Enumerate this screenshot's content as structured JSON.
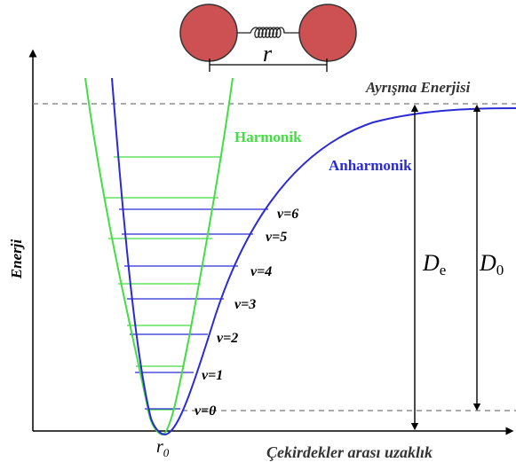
{
  "diagram": {
    "separation_label": "r",
    "dissociation_label": "Ayrışma Enerjisi",
    "harmonic_label": "Harmonik",
    "anharmonic_label": "Anharmonik",
    "energy_axis_label": "Enerji",
    "distance_axis_label": "Çekirdekler arası uzaklık",
    "equilibrium_label": "r",
    "equilibrium_subscript": "0",
    "De_label": "D",
    "De_subscript": "e",
    "D0_label": "D",
    "D0_subscript": "0",
    "levels": [
      {
        "id": "v0",
        "label": "v=0"
      },
      {
        "id": "v1",
        "label": "v=1"
      },
      {
        "id": "v2",
        "label": "v=2"
      },
      {
        "id": "v3",
        "label": "v=3"
      },
      {
        "id": "v4",
        "label": "v=4"
      },
      {
        "id": "v5",
        "label": "v=5"
      },
      {
        "id": "v6",
        "label": "v=6"
      }
    ],
    "colors": {
      "harmonic": "#44dd44",
      "anharmonic": "#2b2bd6",
      "atom_fill": "#cd5052",
      "axis": "#000000",
      "dashed": "#777777"
    }
  }
}
